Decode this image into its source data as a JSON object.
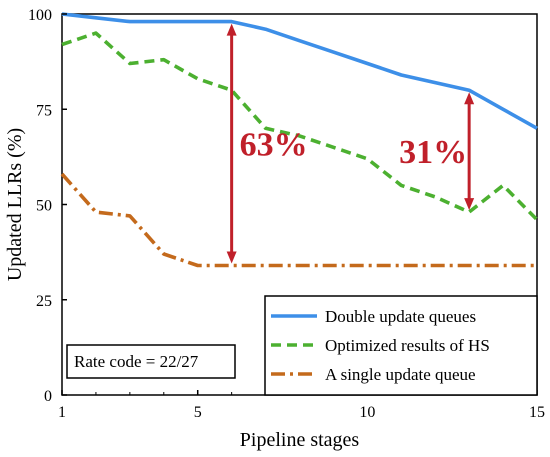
{
  "chart_data": {
    "type": "line",
    "title": "",
    "xlabel": "Pipeline stages",
    "ylabel": "Updated LLRs (%)",
    "xlim": [
      1,
      15
    ],
    "ylim": [
      0,
      100
    ],
    "xticks": [
      1,
      5,
      10,
      15
    ],
    "yticks": [
      0,
      25,
      50,
      75,
      100
    ],
    "grid": false,
    "legend_position": "bottom-right",
    "series": [
      {
        "name": "Double update queues",
        "color": "#3d8fe8",
        "style": "solid",
        "x": [
          1,
          2,
          3,
          4,
          5,
          6,
          7,
          8,
          9,
          10,
          11,
          12,
          13,
          14,
          15
        ],
        "y": [
          100,
          99,
          98,
          98,
          98,
          98,
          96,
          93,
          90,
          87,
          84,
          82,
          80,
          75,
          70
        ]
      },
      {
        "name": "Optimized results of HS",
        "color": "#4cb030",
        "style": "dashed",
        "x": [
          1,
          2,
          3,
          4,
          5,
          6,
          7,
          8,
          9,
          10,
          11,
          12,
          13,
          14,
          15
        ],
        "y": [
          92,
          95,
          87,
          88,
          83,
          80,
          70,
          68,
          65,
          62,
          55,
          52,
          48,
          55,
          46
        ]
      },
      {
        "name": "A single update queue",
        "color": "#c46a1c",
        "style": "dashdot",
        "x": [
          1,
          2,
          3,
          4,
          5,
          6,
          7,
          8,
          9,
          10,
          11,
          12,
          13,
          14,
          15
        ],
        "y": [
          58,
          48,
          47,
          37,
          34,
          34,
          34,
          34,
          34,
          34,
          34,
          34,
          34,
          34,
          34
        ]
      }
    ],
    "annotations": [
      {
        "label": "63%",
        "x": 6,
        "from": 34,
        "to": 98
      },
      {
        "label": "31%",
        "x": 13,
        "from": 48,
        "to": 80
      }
    ],
    "note": "Rate code = 22/27"
  }
}
